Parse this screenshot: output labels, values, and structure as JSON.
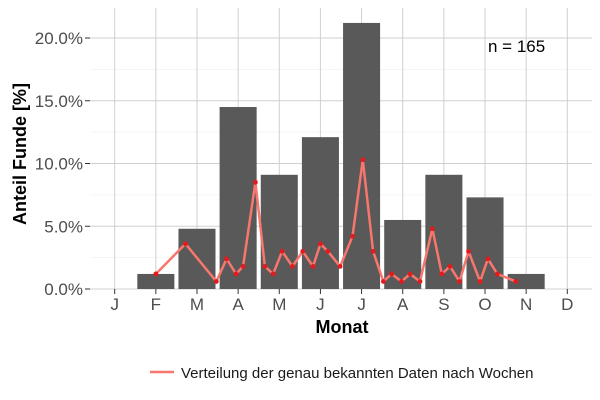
{
  "chart_data": {
    "type": "bar",
    "xlabel": "Monat",
    "ylabel": "Anteil Funde [%]",
    "categories": [
      "J",
      "F",
      "M",
      "A",
      "M",
      "J",
      "J",
      "A",
      "S",
      "O",
      "N",
      "D"
    ],
    "ylim": [
      0,
      0.22
    ],
    "yticks": [
      0,
      0.05,
      0.1,
      0.15,
      0.2
    ],
    "ytick_labels": [
      "0.0%",
      "5.0%",
      "10.0%",
      "15.0%",
      "20.0%"
    ],
    "grid": true,
    "legend_position": "bottom",
    "annotation": "n = 165",
    "series": [
      {
        "type": "bar",
        "color": "#595959",
        "values": [
          0,
          0.012,
          0.048,
          0.145,
          0.091,
          0.121,
          0.212,
          0.055,
          0.091,
          0.073,
          0.012,
          0
        ]
      },
      {
        "type": "line",
        "name": "Verteilung der genau bekannten Daten nach Wochen",
        "color": "#f8766d",
        "point_color": "#e41a1c",
        "x": [
          2.0,
          2.72,
          3.47,
          3.72,
          3.95,
          4.12,
          4.42,
          4.65,
          4.85,
          5.07,
          5.32,
          5.57,
          5.82,
          6.0,
          6.18,
          6.48,
          6.78,
          7.03,
          7.28,
          7.53,
          7.73,
          7.97,
          8.18,
          8.42,
          8.72,
          8.95,
          9.15,
          9.38,
          9.6,
          9.88,
          10.07,
          10.3,
          10.75
        ],
        "y": [
          0.012,
          0.036,
          0.006,
          0.024,
          0.012,
          0.018,
          0.085,
          0.018,
          0.012,
          0.03,
          0.018,
          0.03,
          0.018,
          0.036,
          0.03,
          0.018,
          0.042,
          0.103,
          0.03,
          0.006,
          0.012,
          0.006,
          0.012,
          0.006,
          0.048,
          0.012,
          0.018,
          0.006,
          0.03,
          0.006,
          0.024,
          0.012,
          0.006
        ]
      }
    ]
  }
}
